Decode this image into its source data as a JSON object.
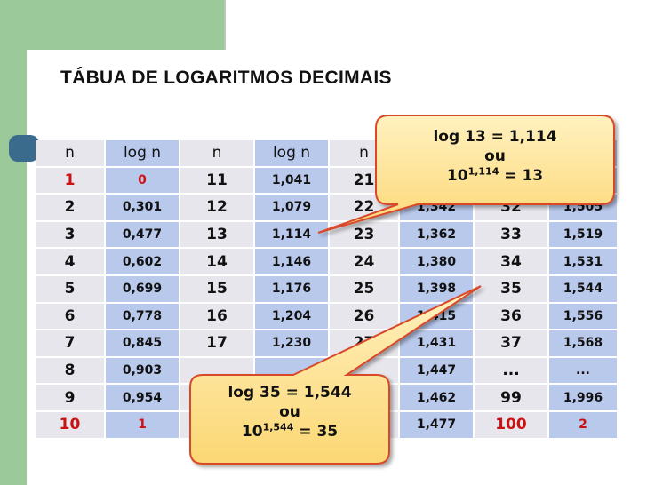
{
  "title": "TÁBUA DE LOGARITMOS DECIMAIS",
  "headers": [
    "n",
    "log n",
    "n",
    "log n",
    "n",
    "log n",
    "n",
    "log n"
  ],
  "rows": [
    [
      "1",
      "0",
      "11",
      "1,041",
      "21",
      "",
      "",
      ""
    ],
    [
      "2",
      "0,301",
      "12",
      "1,079",
      "22",
      "1,342",
      "32",
      "1,505"
    ],
    [
      "3",
      "0,477",
      "13",
      "1,114",
      "23",
      "1,362",
      "33",
      "1,519"
    ],
    [
      "4",
      "0,602",
      "14",
      "1,146",
      "24",
      "1,380",
      "34",
      "1,531"
    ],
    [
      "5",
      "0,699",
      "15",
      "1,176",
      "25",
      "1,398",
      "35",
      "1,544"
    ],
    [
      "6",
      "0,778",
      "16",
      "1,204",
      "26",
      "1,415",
      "36",
      "1,556"
    ],
    [
      "7",
      "0,845",
      "17",
      "1,230",
      "27",
      "1,431",
      "37",
      "1,568"
    ],
    [
      "8",
      "0,903",
      "",
      "",
      "",
      "1,447",
      "...",
      "..."
    ],
    [
      "9",
      "0,954",
      "",
      "",
      "",
      "1,462",
      "99",
      "1,996"
    ],
    [
      "10",
      "1",
      "",
      "",
      "",
      "1,477",
      "100",
      "2"
    ]
  ],
  "callout_top": {
    "line1": "log 13 = 1,114",
    "line2": "ou",
    "base": "10",
    "exp": "1,114",
    "rest": " = 13"
  },
  "callout_bottom": {
    "line1": "log 35 = 1,544",
    "line2": "ou",
    "base": "10",
    "exp": "1,544",
    "rest": " = 35"
  },
  "colors": {
    "green": "#9cc99a",
    "gray_cell": "#e6e6ec",
    "blue_cell": "#b9c9ec",
    "red_text": "#cc1111",
    "callout_fill": "#fde49a",
    "callout_border": "#d84a2a"
  }
}
